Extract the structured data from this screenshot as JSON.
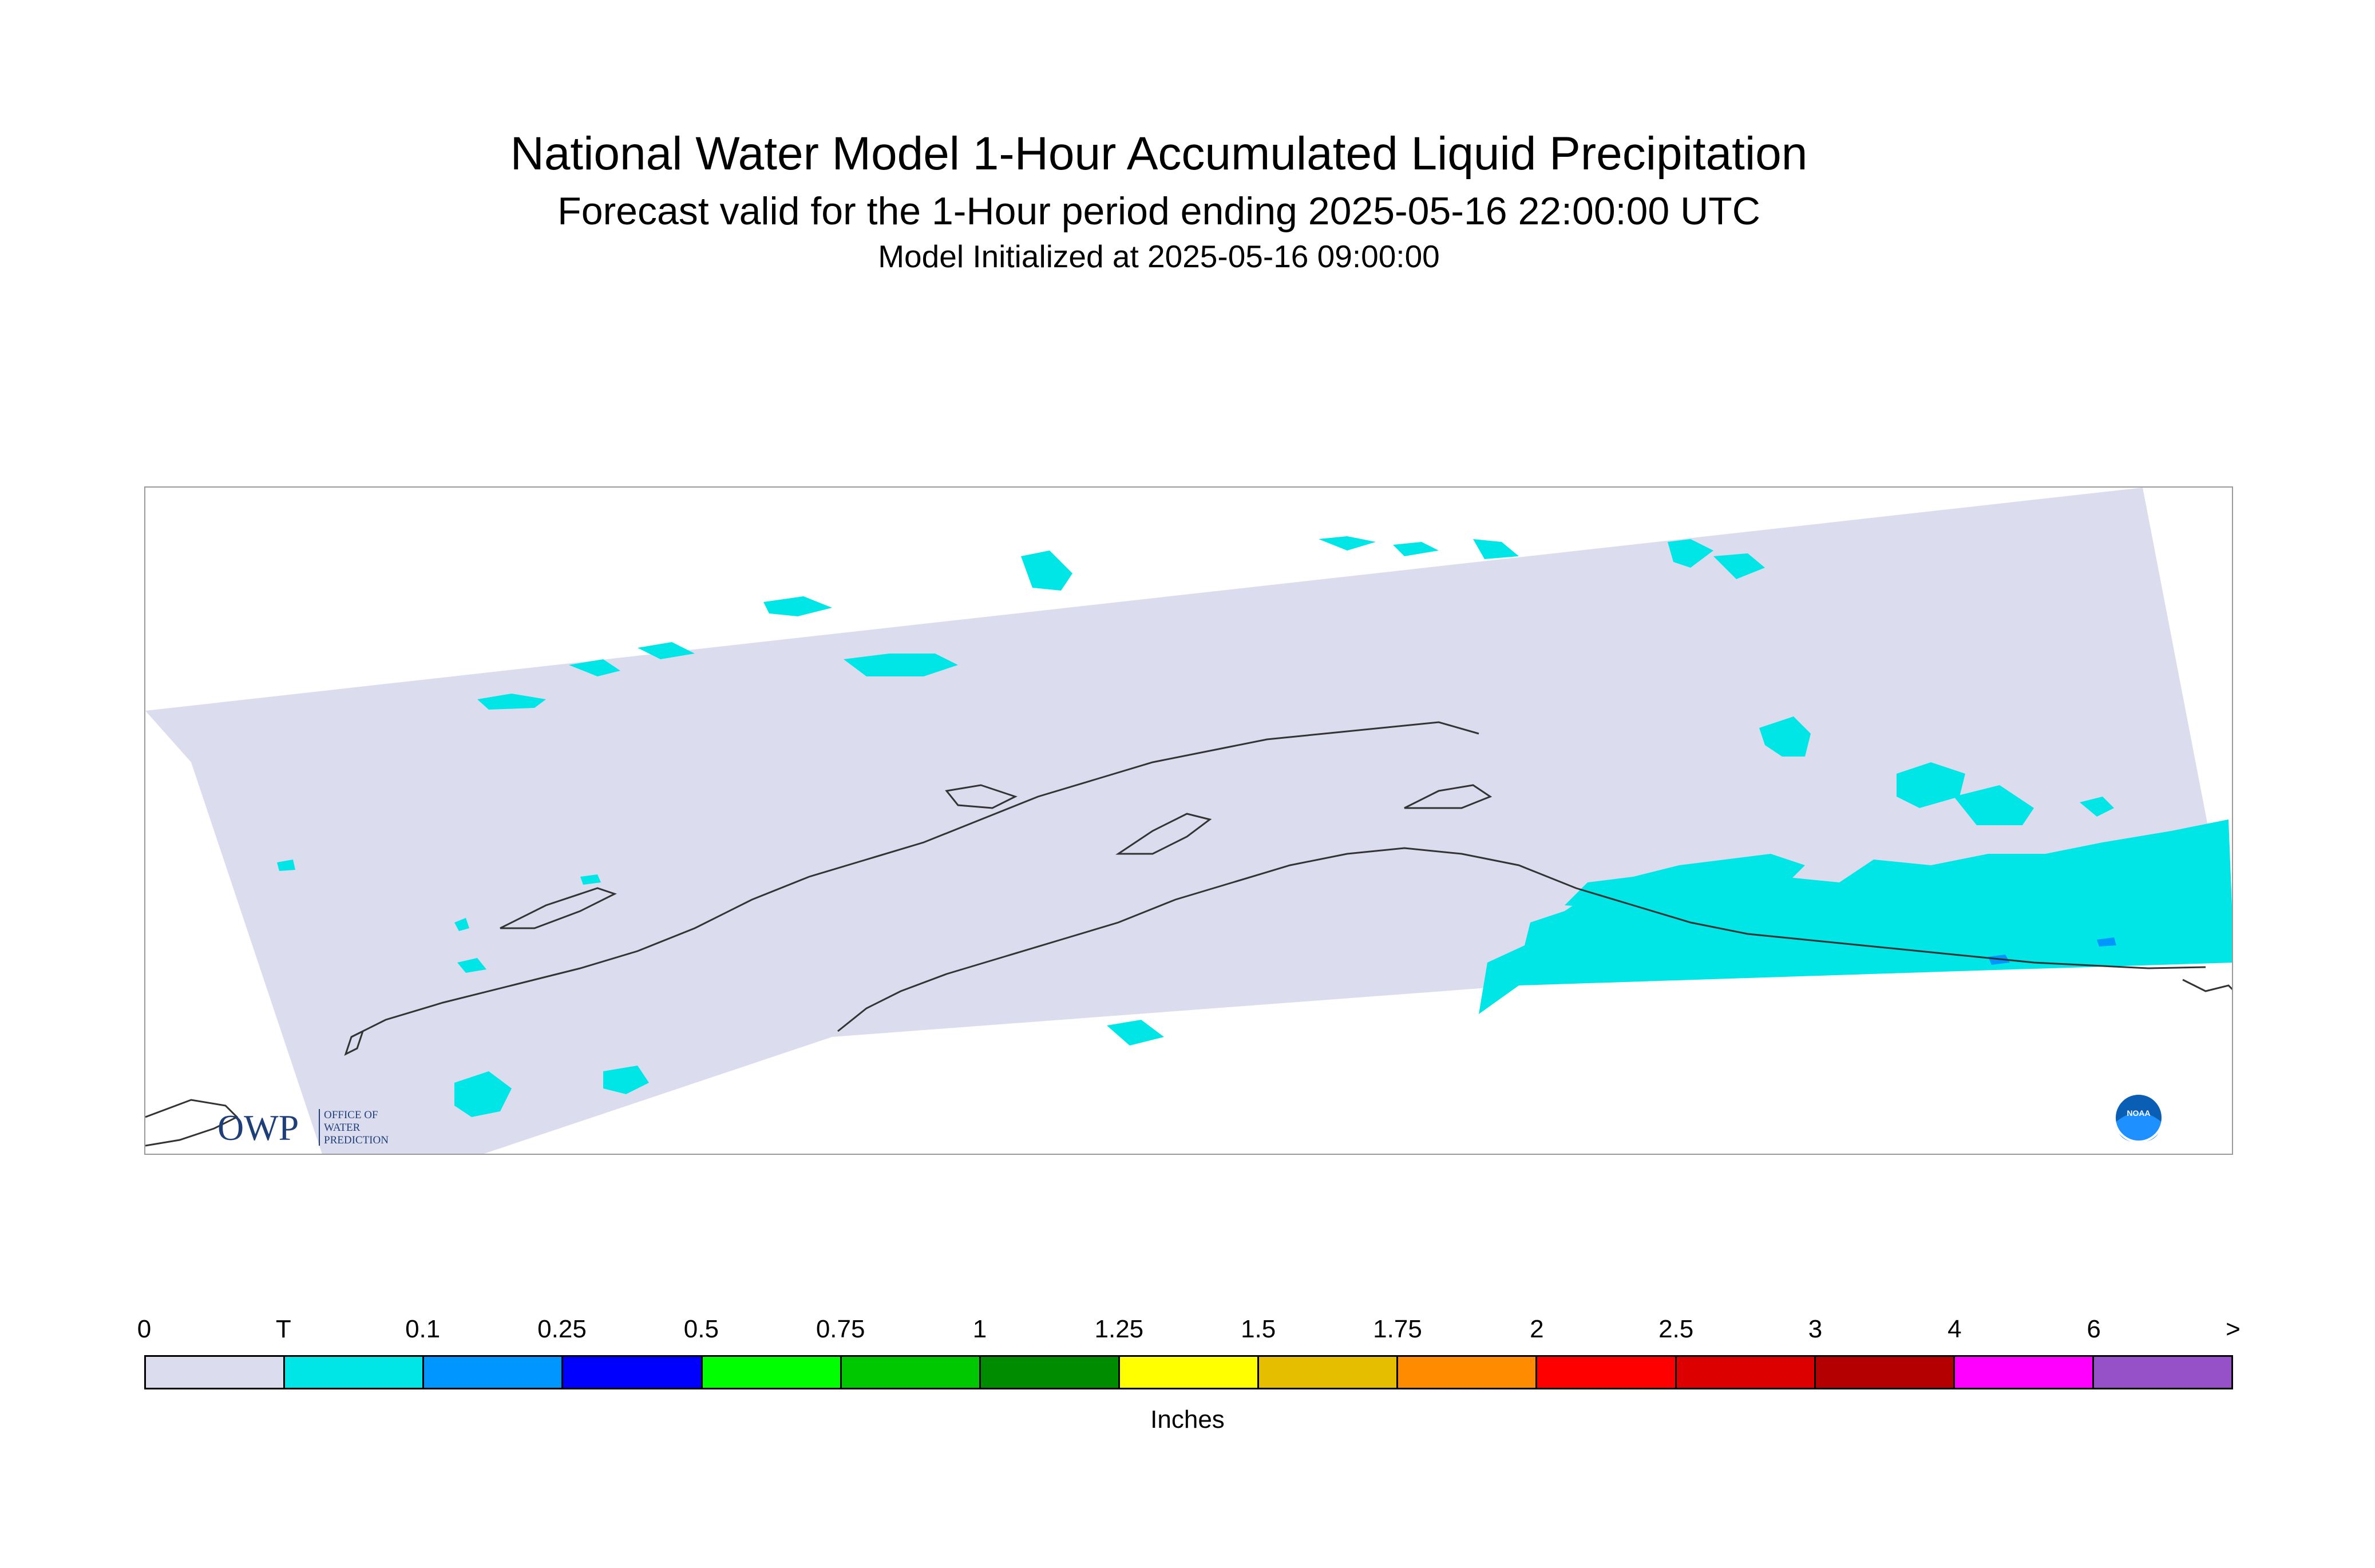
{
  "title": {
    "main": "National Water Model 1-Hour Accumulated Liquid Precipitation",
    "forecast": "Forecast valid for the 1-Hour period ending 2025-05-16 22:00:00 UTC",
    "init": "Model Initialized at 2025-05-16 09:00:00"
  },
  "logos": {
    "owp_text": "OWP",
    "owp_sub": [
      "OFFICE OF",
      "WATER",
      "PREDICTION"
    ],
    "noaa_text": "NOAA"
  },
  "legend": {
    "units": "Inches",
    "ticks": [
      "0",
      "T",
      "0.1",
      "0.25",
      "0.5",
      "0.75",
      "1",
      "1.25",
      "1.5",
      "1.75",
      "2",
      "2.5",
      "3",
      "4",
      "6",
      ">"
    ],
    "colors": [
      "#dcdcef",
      "#00e6e6",
      "#0096ff",
      "#0000ff",
      "#00ff00",
      "#00c800",
      "#008c00",
      "#ffff00",
      "#e6be00",
      "#ff8c00",
      "#ff0000",
      "#dc0000",
      "#b40000",
      "#ff00ff",
      "#9650c8"
    ]
  },
  "map": {
    "domain_fill": "#dcdcef",
    "trace_color": "#00e6e6",
    "light_color": "#0096ff",
    "coast_color": "#333333"
  }
}
